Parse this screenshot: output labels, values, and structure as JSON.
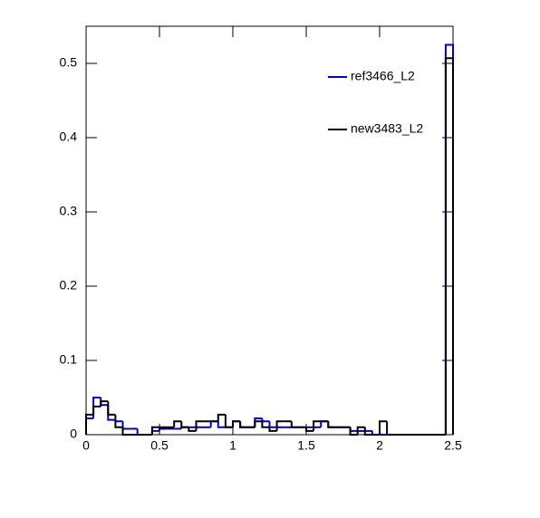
{
  "chart_data": {
    "type": "histogram",
    "bins": [
      0,
      0.05,
      0.1,
      0.15,
      0.2,
      0.25,
      0.3,
      0.35,
      0.4,
      0.45,
      0.5,
      0.55,
      0.6,
      0.65,
      0.7,
      0.75,
      0.8,
      0.85,
      0.9,
      0.95,
      1,
      1.05,
      1.1,
      1.15,
      1.2,
      1.25,
      1.3,
      1.35,
      1.4,
      1.45,
      1.5,
      1.55,
      1.6,
      1.65,
      1.7,
      1.75,
      1.8,
      1.85,
      1.9,
      1.95,
      2,
      2.05,
      2.1,
      2.15,
      2.2,
      2.25,
      2.3,
      2.35,
      2.4,
      2.45,
      2.5
    ],
    "series": [
      {
        "name": "ref3466_L2",
        "color": "#0000cc",
        "values": [
          0.022,
          0.05,
          0.04,
          0.02,
          0.018,
          0.008,
          0.008,
          0,
          0,
          0.005,
          0.008,
          0.008,
          0.008,
          0.01,
          0.01,
          0.01,
          0.01,
          0.018,
          0.01,
          0.01,
          0.018,
          0.01,
          0.01,
          0.022,
          0.018,
          0.01,
          0.01,
          0.01,
          0.01,
          0.01,
          0.01,
          0.01,
          0.018,
          0.01,
          0.01,
          0.01,
          0.005,
          0.005,
          0.005,
          0,
          0,
          0,
          0,
          0,
          0,
          0,
          0,
          0,
          0,
          0.525
        ]
      },
      {
        "name": "new3483_L2",
        "color": "#000000",
        "values": [
          0.027,
          0.038,
          0.045,
          0.027,
          0.01,
          0,
          0,
          0,
          0,
          0.01,
          0.01,
          0.01,
          0.018,
          0.01,
          0.005,
          0.018,
          0.018,
          0.018,
          0.027,
          0.01,
          0.018,
          0.01,
          0.01,
          0.018,
          0.01,
          0.005,
          0.018,
          0.018,
          0.01,
          0.01,
          0.005,
          0.018,
          0.018,
          0.01,
          0.01,
          0.01,
          0,
          0.01,
          0,
          0,
          0.018,
          0,
          0,
          0,
          0,
          0,
          0,
          0,
          0,
          0.507
        ]
      }
    ],
    "xlim": [
      0,
      2.5
    ],
    "ylim": [
      0,
      0.55
    ],
    "xticks": [
      0,
      0.5,
      1,
      1.5,
      2,
      2.5
    ],
    "yticks": [
      0,
      0.1,
      0.2,
      0.3,
      0.4,
      0.5
    ],
    "legend": "top-right"
  }
}
